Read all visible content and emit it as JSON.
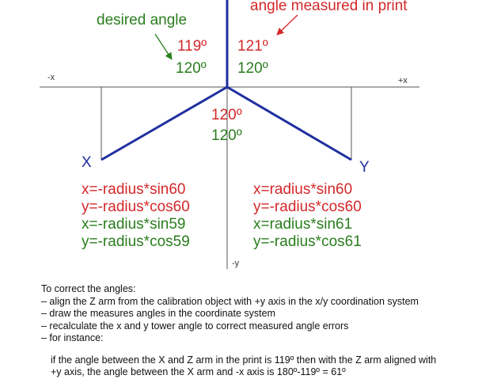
{
  "labels": {
    "desired_angle": "desired angle",
    "angle_measured": "angle measured in print",
    "neg_x": "-x",
    "pos_x": "+x",
    "neg_y": "-y",
    "tower_x": "X",
    "tower_y": "Y"
  },
  "angles": {
    "left_measured": "119º",
    "left_desired": "120º",
    "right_measured": "121º",
    "right_desired": "120º",
    "bottom_measured": "120º",
    "bottom_desired": "120º"
  },
  "formulas": {
    "left_red": [
      "x=-radius*sin60",
      "y=-radius*cos60"
    ],
    "left_green": [
      "x=-radius*sin59",
      "y=-radius*cos59"
    ],
    "right_red": [
      "x=radius*sin60",
      "y=-radius*cos60"
    ],
    "right_green": [
      "x=radius*sin61",
      "y=-radius*cos61"
    ]
  },
  "notes": {
    "lines": [
      "To correct the angles:",
      "– align the Z arm from the calibration object with +y axis in the x/y coordination system",
      "– draw the measures angles in the coordinate system",
      "– recalculate the x and y tower angle to correct measured angle errors",
      "– for instance:"
    ],
    "example": [
      "if the angle between the X and Z arm in the print is 119º then with the Z arm aligned with",
      "+y axis, the angle between the X arm and -x axis is 180º-119º = 61º"
    ]
  },
  "colors": {
    "arm": "#1f2fa0",
    "measured": "#d4282a",
    "desired": "#2a7d1e",
    "axis": "#555555"
  }
}
